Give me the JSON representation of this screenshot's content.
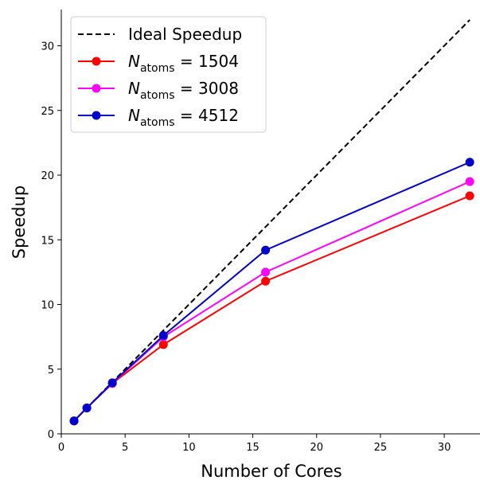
{
  "chart_data": {
    "type": "line",
    "xlabel": "Number of Cores",
    "ylabel": "Speedup",
    "xlim": [
      0,
      32.8
    ],
    "ylim": [
      0,
      32.8
    ],
    "xticks": [
      0,
      5,
      10,
      15,
      20,
      25,
      30
    ],
    "yticks": [
      0,
      5,
      10,
      15,
      20,
      25,
      30
    ],
    "xtick_labels": [
      "0",
      "5",
      "10",
      "15",
      "20",
      "25",
      "30"
    ],
    "ytick_labels": [
      "0",
      "5",
      "10",
      "15",
      "20",
      "25",
      "30"
    ],
    "legend_position": "top-left",
    "grid": false,
    "series": [
      {
        "name": "Ideal Speedup",
        "style": "dashed",
        "color": "#000000",
        "markers": false,
        "x": [
          1,
          32
        ],
        "y": [
          1,
          32
        ]
      },
      {
        "name": "N_atoms = 1504",
        "name_main": "N",
        "name_sub": "atoms",
        "name_rest": " = 1504",
        "style": "solid",
        "color": "#ff0000",
        "markers": true,
        "x": [
          1,
          2,
          4,
          8,
          16,
          32
        ],
        "y": [
          1.0,
          2.0,
          3.9,
          6.9,
          11.8,
          18.4
        ]
      },
      {
        "name": "N_atoms = 3008",
        "name_main": "N",
        "name_sub": "atoms",
        "name_rest": " = 3008",
        "style": "solid",
        "color": "#ff00ff",
        "markers": true,
        "x": [
          1,
          2,
          4,
          8,
          16,
          32
        ],
        "y": [
          1.0,
          2.0,
          3.9,
          7.5,
          12.5,
          19.5
        ]
      },
      {
        "name": "N_atoms = 4512",
        "name_main": "N",
        "name_sub": "atoms",
        "name_rest": " = 4512",
        "style": "solid",
        "color": "#0000cc",
        "markers": true,
        "x": [
          1,
          2,
          4,
          8,
          16,
          32
        ],
        "y": [
          1.0,
          2.0,
          3.95,
          7.6,
          14.2,
          21.0
        ]
      }
    ]
  }
}
